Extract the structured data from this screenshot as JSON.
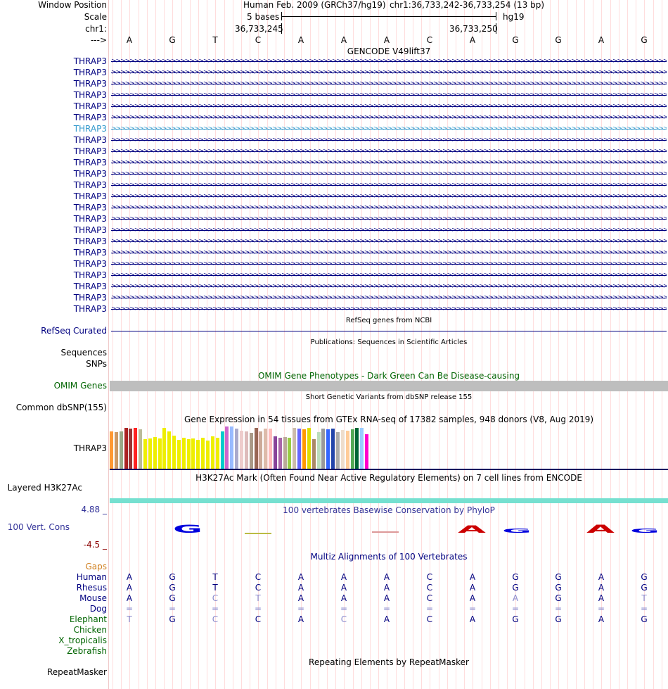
{
  "colors": {
    "navy": "#000080",
    "omim_green": "#006400",
    "gaps_orange": "#d08020",
    "gray_band": "#bebebe",
    "teal": "#76e0d0",
    "red": "#cc0000"
  },
  "header": {
    "window_position_label": "Window Position",
    "scale_label": "Scale",
    "chrom_label": "chr1:",
    "strand_label": "--->",
    "assembly": "Human Feb. 2009 (GRCh37/hg19)",
    "position": "chr1:36,733,242-36,733,254 (13 bp)",
    "scale_text": "5 bases",
    "db": "hg19",
    "coord_left": "36,733,245",
    "coord_right": "36,733,250"
  },
  "sequence": [
    "A",
    "G",
    "T",
    "C",
    "A",
    "A",
    "A",
    "C",
    "A",
    "G",
    "G",
    "A",
    "G"
  ],
  "gencode": {
    "title": "GENCODE V49lift37",
    "gene": "THRAP3",
    "transcripts": 23,
    "highlight_index": 6
  },
  "refseq": {
    "title": "RefSeq genes from NCBI",
    "label": "RefSeq Curated"
  },
  "publications": {
    "title": "Publications: Sequences in Scientific Articles",
    "label1": "Sequences",
    "label2": "SNPs"
  },
  "omim": {
    "title": "OMIM Gene Phenotypes - Dark Green Can Be Disease-causing",
    "label": "OMIM Genes"
  },
  "dbsnp": {
    "title": "Short Genetic Variants from dbSNP release 155",
    "label": "Common dbSNP(155)"
  },
  "gtex": {
    "title": "Gene Expression in 54 tissues from GTEx RNA-seq of 17382 samples, 948 donors (V8, Aug 2019)",
    "label": "THRAP3",
    "bars": [
      {
        "color": "#ff9933",
        "value": 0.89
      },
      {
        "color": "#cc9966",
        "value": 0.86
      },
      {
        "color": "#99aa88",
        "value": 0.89
      },
      {
        "color": "#aa2222",
        "value": 0.97
      },
      {
        "color": "#993333",
        "value": 0.95
      },
      {
        "color": "#ff2222",
        "value": 0.97
      },
      {
        "color": "#bbbb99",
        "value": 0.93
      },
      {
        "color": "#eeee00",
        "value": 0.7
      },
      {
        "color": "#eeee00",
        "value": 0.72
      },
      {
        "color": "#eeee00",
        "value": 0.75
      },
      {
        "color": "#eeee00",
        "value": 0.71
      },
      {
        "color": "#eeee00",
        "value": 0.96
      },
      {
        "color": "#eeee00",
        "value": 0.88
      },
      {
        "color": "#eeee00",
        "value": 0.79
      },
      {
        "color": "#eeee00",
        "value": 0.69
      },
      {
        "color": "#eeee00",
        "value": 0.73
      },
      {
        "color": "#eeee00",
        "value": 0.7
      },
      {
        "color": "#eeee00",
        "value": 0.72
      },
      {
        "color": "#eeee00",
        "value": 0.68
      },
      {
        "color": "#eeee00",
        "value": 0.73
      },
      {
        "color": "#eeee00",
        "value": 0.66
      },
      {
        "color": "#eeee00",
        "value": 0.77
      },
      {
        "color": "#eeee00",
        "value": 0.73
      },
      {
        "color": "#00cccc",
        "value": 0.89
      },
      {
        "color": "#cc66cc",
        "value": 1.0
      },
      {
        "color": "#99bbff",
        "value": 1.0
      },
      {
        "color": "#aaaacc",
        "value": 0.95
      },
      {
        "color": "#eecccc",
        "value": 0.9
      },
      {
        "color": "#ddbbbb",
        "value": 0.88
      },
      {
        "color": "#aa9988",
        "value": 0.85
      },
      {
        "color": "#996655",
        "value": 0.97
      },
      {
        "color": "#ccaa99",
        "value": 0.89
      },
      {
        "color": "#ddbbaa",
        "value": 0.95
      },
      {
        "color": "#ffbbbb",
        "value": 0.95
      },
      {
        "color": "#884499",
        "value": 0.77
      },
      {
        "color": "#aa66aa",
        "value": 0.74
      },
      {
        "color": "#bbaa99",
        "value": 0.75
      },
      {
        "color": "#99cc44",
        "value": 0.73
      },
      {
        "color": "#ccbbaa",
        "value": 0.96
      },
      {
        "color": "#6666ff",
        "value": 0.95
      },
      {
        "color": "#ff9900",
        "value": 0.93
      },
      {
        "color": "#dddd00",
        "value": 0.97
      },
      {
        "color": "#aa8866",
        "value": 0.7
      },
      {
        "color": "#bbddbb",
        "value": 0.87
      },
      {
        "color": "#999999",
        "value": 0.95
      },
      {
        "color": "#3366ff",
        "value": 0.93
      },
      {
        "color": "#2244aa",
        "value": 0.95
      },
      {
        "color": "#aaaaaa",
        "value": 0.86
      },
      {
        "color": "#eeddcc",
        "value": 0.91
      },
      {
        "color": "#ffcc99",
        "value": 0.9
      },
      {
        "color": "#55aa55",
        "value": 0.93
      },
      {
        "color": "#006633",
        "value": 0.97
      },
      {
        "color": "#99ccff",
        "value": 0.96
      },
      {
        "color": "#ff00cc",
        "value": 0.81
      }
    ]
  },
  "h3k27ac": {
    "title": "H3K27Ac Mark (Often Found Near Active Regulatory Elements) on 7 cell lines from ENCODE",
    "label": "Layered H3K27Ac"
  },
  "phylop": {
    "title": "100 vertebrates Basewise Conservation by PhyloP",
    "label": "100 Vert. Cons",
    "max": "4.88 _",
    "min": "-4.5 _"
  },
  "multiz": {
    "title": "Multiz Alignments of 100 Vertebrates",
    "gaps_label": "Gaps",
    "species": [
      {
        "name": "Human",
        "bases": [
          "A",
          "G",
          "T",
          "C",
          "A",
          "A",
          "A",
          "C",
          "A",
          "G",
          "G",
          "A",
          "G"
        ]
      },
      {
        "name": "Rhesus",
        "bases": [
          "A",
          "G",
          "T",
          "C",
          "A",
          "A",
          "A",
          "C",
          "A",
          "G",
          "G",
          "A",
          "G"
        ]
      },
      {
        "name": "Mouse",
        "bases": [
          "A",
          "G",
          "C",
          "T",
          "A",
          "A",
          "A",
          "C",
          "A",
          "A",
          "G",
          "A",
          "T"
        ]
      },
      {
        "name": "Dog",
        "bases": [
          "=",
          "=",
          "=",
          "=",
          "=",
          "=",
          "=",
          "=",
          "=",
          "=",
          "=",
          "=",
          "="
        ]
      },
      {
        "name": "Elephant",
        "bases": [
          "T",
          "G",
          "C",
          "C",
          "A",
          "C",
          "A",
          "C",
          "A",
          "G",
          "G",
          "A",
          "G"
        ]
      },
      {
        "name": "Chicken",
        "bases": []
      },
      {
        "name": "X_tropicalis",
        "bases": []
      },
      {
        "name": "Zebrafish",
        "bases": []
      }
    ]
  },
  "repeatmasker": {
    "title": "Repeating Elements by RepeatMasker",
    "label": "RepeatMasker"
  }
}
